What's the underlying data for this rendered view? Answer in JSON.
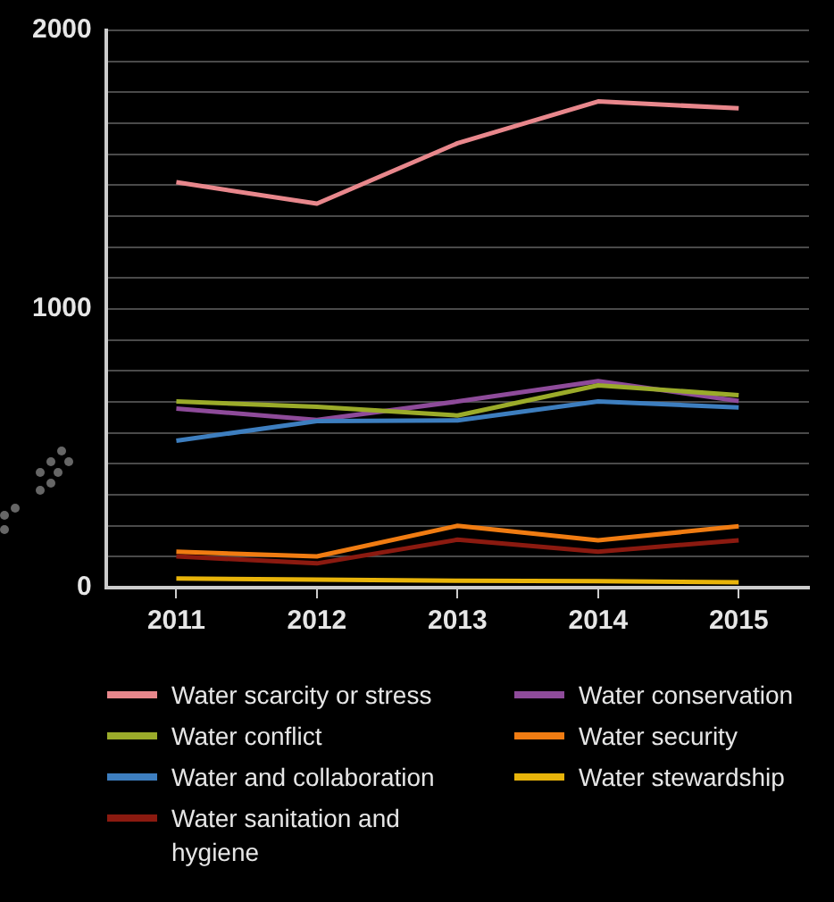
{
  "chart_data": {
    "type": "line",
    "categories": [
      "2011",
      "2012",
      "2013",
      "2014",
      "2015"
    ],
    "series": [
      {
        "name": "Water scarcity or stress",
        "color": "#e8878c",
        "values": [
          1455,
          1378,
          1595,
          1745,
          1720
        ]
      },
      {
        "name": "Water conflict",
        "color": "#9bab2a",
        "values": [
          668,
          649,
          618,
          726,
          691
        ]
      },
      {
        "name": "Water and collaboration",
        "color": "#3d7ebf",
        "values": [
          527,
          598,
          600,
          668,
          647
        ]
      },
      {
        "name": "Water sanitation and hygiene",
        "color": "#8b1a10",
        "values": [
          112,
          87,
          172,
          129,
          170
        ]
      },
      {
        "name": "Water conservation",
        "color": "#8e4b9a",
        "values": [
          643,
          602,
          668,
          741,
          670
        ]
      },
      {
        "name": "Water security",
        "color": "#f07c12",
        "values": [
          129,
          112,
          222,
          170,
          220
        ]
      },
      {
        "name": "Water stewardship",
        "color": "#e8b40a",
        "values": [
          33,
          29,
          25,
          23,
          19
        ]
      }
    ],
    "ylim": [
      0,
      2000
    ],
    "yticks": [
      0,
      {
        "value": 111.1,
        "label": null
      },
      {
        "value": 222.2,
        "label": null
      },
      {
        "value": 333.3,
        "label": null
      },
      {
        "value": 444.4,
        "label": null
      },
      {
        "value": 555.6,
        "label": null
      },
      {
        "value": 666.7,
        "label": null
      },
      {
        "value": 777.8,
        "label": null
      },
      {
        "value": 888.9,
        "label": null
      },
      1000,
      {
        "value": 1111.1,
        "label": null
      },
      {
        "value": 1222.2,
        "label": null
      },
      {
        "value": 1333.3,
        "label": null
      },
      {
        "value": 1444.4,
        "label": null
      },
      {
        "value": 1555.6,
        "label": null
      },
      {
        "value": 1666.7,
        "label": null
      },
      {
        "value": 1777.8,
        "label": null
      },
      {
        "value": 1888.9,
        "label": null
      },
      2000
    ],
    "grid": "y",
    "legend": "bottom",
    "marker": "none",
    "line_style": "solid"
  }
}
